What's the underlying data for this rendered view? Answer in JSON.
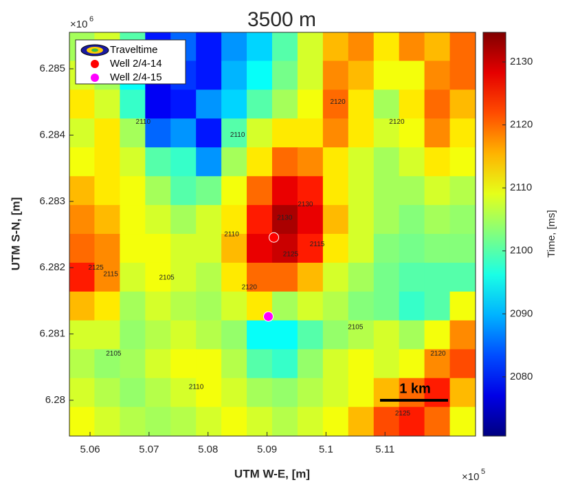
{
  "chart_data": {
    "type": "contour",
    "title": "3500 m",
    "x_label": "UTM W-E, [m]",
    "y_label": "UTM S-N, [m]",
    "x_exponent": {
      "base": "×10",
      "power": "5"
    },
    "y_exponent": {
      "base": "×10",
      "power": "6"
    },
    "xlim": [
      505650,
      512535
    ],
    "ylim": [
      6279460,
      6285550
    ],
    "xticks": [
      {
        "value": 506000,
        "label": "5.06"
      },
      {
        "value": 507000,
        "label": "5.07"
      },
      {
        "value": 508000,
        "label": "5.08"
      },
      {
        "value": 509000,
        "label": "5.09"
      },
      {
        "value": 510000,
        "label": "5.1"
      },
      {
        "value": 511000,
        "label": "5.11"
      }
    ],
    "yticks": [
      {
        "value": 6280000,
        "label": "6.28"
      },
      {
        "value": 6281000,
        "label": "6.281"
      },
      {
        "value": 6282000,
        "label": "6.282"
      },
      {
        "value": 6283000,
        "label": "6.283"
      },
      {
        "value": 6284000,
        "label": "6.284"
      },
      {
        "value": 6285000,
        "label": "6.285"
      }
    ],
    "colorbar": {
      "label": "Time, [ms]",
      "clim": [
        2070.6,
        2134.7
      ],
      "ticks": [
        2080,
        2090,
        2100,
        2110,
        2120,
        2130
      ],
      "colormap": "jet"
    },
    "x": [
      505865,
      506295,
      506726,
      507156,
      507586,
      508017,
      508447,
      508877,
      509307,
      509738,
      510168,
      510598,
      511029,
      511459,
      511889,
      512320
    ],
    "y": [
      6285332,
      6284897,
      6284462,
      6284027,
      6283592,
      6283157,
      6282722,
      6282287,
      6281852,
      6281417,
      6280982,
      6280547,
      6280112,
      6279677
    ],
    "z": [
      [
        2105,
        2108,
        2100,
        2080,
        2085,
        2080,
        2088,
        2092,
        2100,
        2108,
        2115,
        2118,
        2112,
        2118,
        2115,
        2120
      ],
      [
        2108,
        2105,
        2095,
        2078,
        2082,
        2080,
        2090,
        2095,
        2102,
        2108,
        2118,
        2115,
        2110,
        2110,
        2118,
        2120
      ],
      [
        2112,
        2108,
        2098,
        2078,
        2080,
        2088,
        2092,
        2100,
        2105,
        2110,
        2120,
        2112,
        2105,
        2112,
        2120,
        2115
      ],
      [
        2108,
        2112,
        2105,
        2085,
        2088,
        2080,
        2100,
        2108,
        2112,
        2112,
        2118,
        2112,
        2108,
        2110,
        2118,
        2112
      ],
      [
        2110,
        2112,
        2108,
        2100,
        2098,
        2088,
        2105,
        2112,
        2120,
        2118,
        2112,
        2108,
        2105,
        2108,
        2112,
        2110
      ],
      [
        2115,
        2112,
        2110,
        2105,
        2100,
        2102,
        2110,
        2120,
        2128,
        2125,
        2112,
        2108,
        2105,
        2105,
        2108,
        2106
      ],
      [
        2118,
        2115,
        2110,
        2108,
        2105,
        2108,
        2112,
        2125,
        2132,
        2128,
        2115,
        2108,
        2105,
        2103,
        2105,
        2104
      ],
      [
        2120,
        2118,
        2110,
        2110,
        2108,
        2108,
        2115,
        2128,
        2130,
        2125,
        2112,
        2108,
        2103,
        2102,
        2103,
        2103
      ],
      [
        2125,
        2118,
        2108,
        2110,
        2108,
        2106,
        2112,
        2120,
        2120,
        2115,
        2108,
        2105,
        2102,
        2100,
        2100,
        2100
      ],
      [
        2115,
        2112,
        2105,
        2108,
        2106,
        2105,
        2108,
        2112,
        2105,
        2108,
        2106,
        2103,
        2102,
        2098,
        2100,
        2110
      ],
      [
        2108,
        2108,
        2104,
        2106,
        2108,
        2106,
        2104,
        2095,
        2095,
        2100,
        2104,
        2106,
        2108,
        2105,
        2110,
        2118
      ],
      [
        2106,
        2104,
        2105,
        2108,
        2110,
        2110,
        2106,
        2100,
        2098,
        2104,
        2108,
        2110,
        2108,
        2110,
        2118,
        2122
      ],
      [
        2108,
        2106,
        2104,
        2106,
        2108,
        2110,
        2108,
        2105,
        2104,
        2106,
        2108,
        2110,
        2115,
        2120,
        2125,
        2115
      ],
      [
        2110,
        2108,
        2106,
        2105,
        2106,
        2108,
        2110,
        2108,
        2106,
        2108,
        2110,
        2115,
        2122,
        2125,
        2120,
        2110
      ]
    ],
    "contour_labels": [
      {
        "x": 509300,
        "y": 6282750,
        "value": 2130
      },
      {
        "x": 509650,
        "y": 6282950,
        "value": 2130
      },
      {
        "x": 509400,
        "y": 6282200,
        "value": 2125
      },
      {
        "x": 508700,
        "y": 6281700,
        "value": 2120
      },
      {
        "x": 508400,
        "y": 6282500,
        "value": 2110
      },
      {
        "x": 507300,
        "y": 6281850,
        "value": 2105
      },
      {
        "x": 509850,
        "y": 6282350,
        "value": 2115
      },
      {
        "x": 506350,
        "y": 6281900,
        "value": 2115
      },
      {
        "x": 506100,
        "y": 6282000,
        "value": 2125
      },
      {
        "x": 510200,
        "y": 6284500,
        "value": 2120
      },
      {
        "x": 511200,
        "y": 6284200,
        "value": 2120
      },
      {
        "x": 508500,
        "y": 6284000,
        "value": 2110
      },
      {
        "x": 510500,
        "y": 6281100,
        "value": 2105
      },
      {
        "x": 506400,
        "y": 6280700,
        "value": 2105
      },
      {
        "x": 511900,
        "y": 6280700,
        "value": 2120
      },
      {
        "x": 507800,
        "y": 6280200,
        "value": 2110
      },
      {
        "x": 511300,
        "y": 6279800,
        "value": 2125
      },
      {
        "x": 506900,
        "y": 6284200,
        "value": 2110
      }
    ],
    "series": [
      {
        "name": "Traveltime"
      },
      {
        "name": "Well 2/4-14",
        "color": "#ff0000",
        "x": [
          509116
        ],
        "y": [
          6282456
        ]
      },
      {
        "name": "Well 2/4-15",
        "color": "#ff00ff",
        "x": [
          509023
        ],
        "y": [
          6281263
        ]
      }
    ],
    "scale_bar": "1 km"
  }
}
